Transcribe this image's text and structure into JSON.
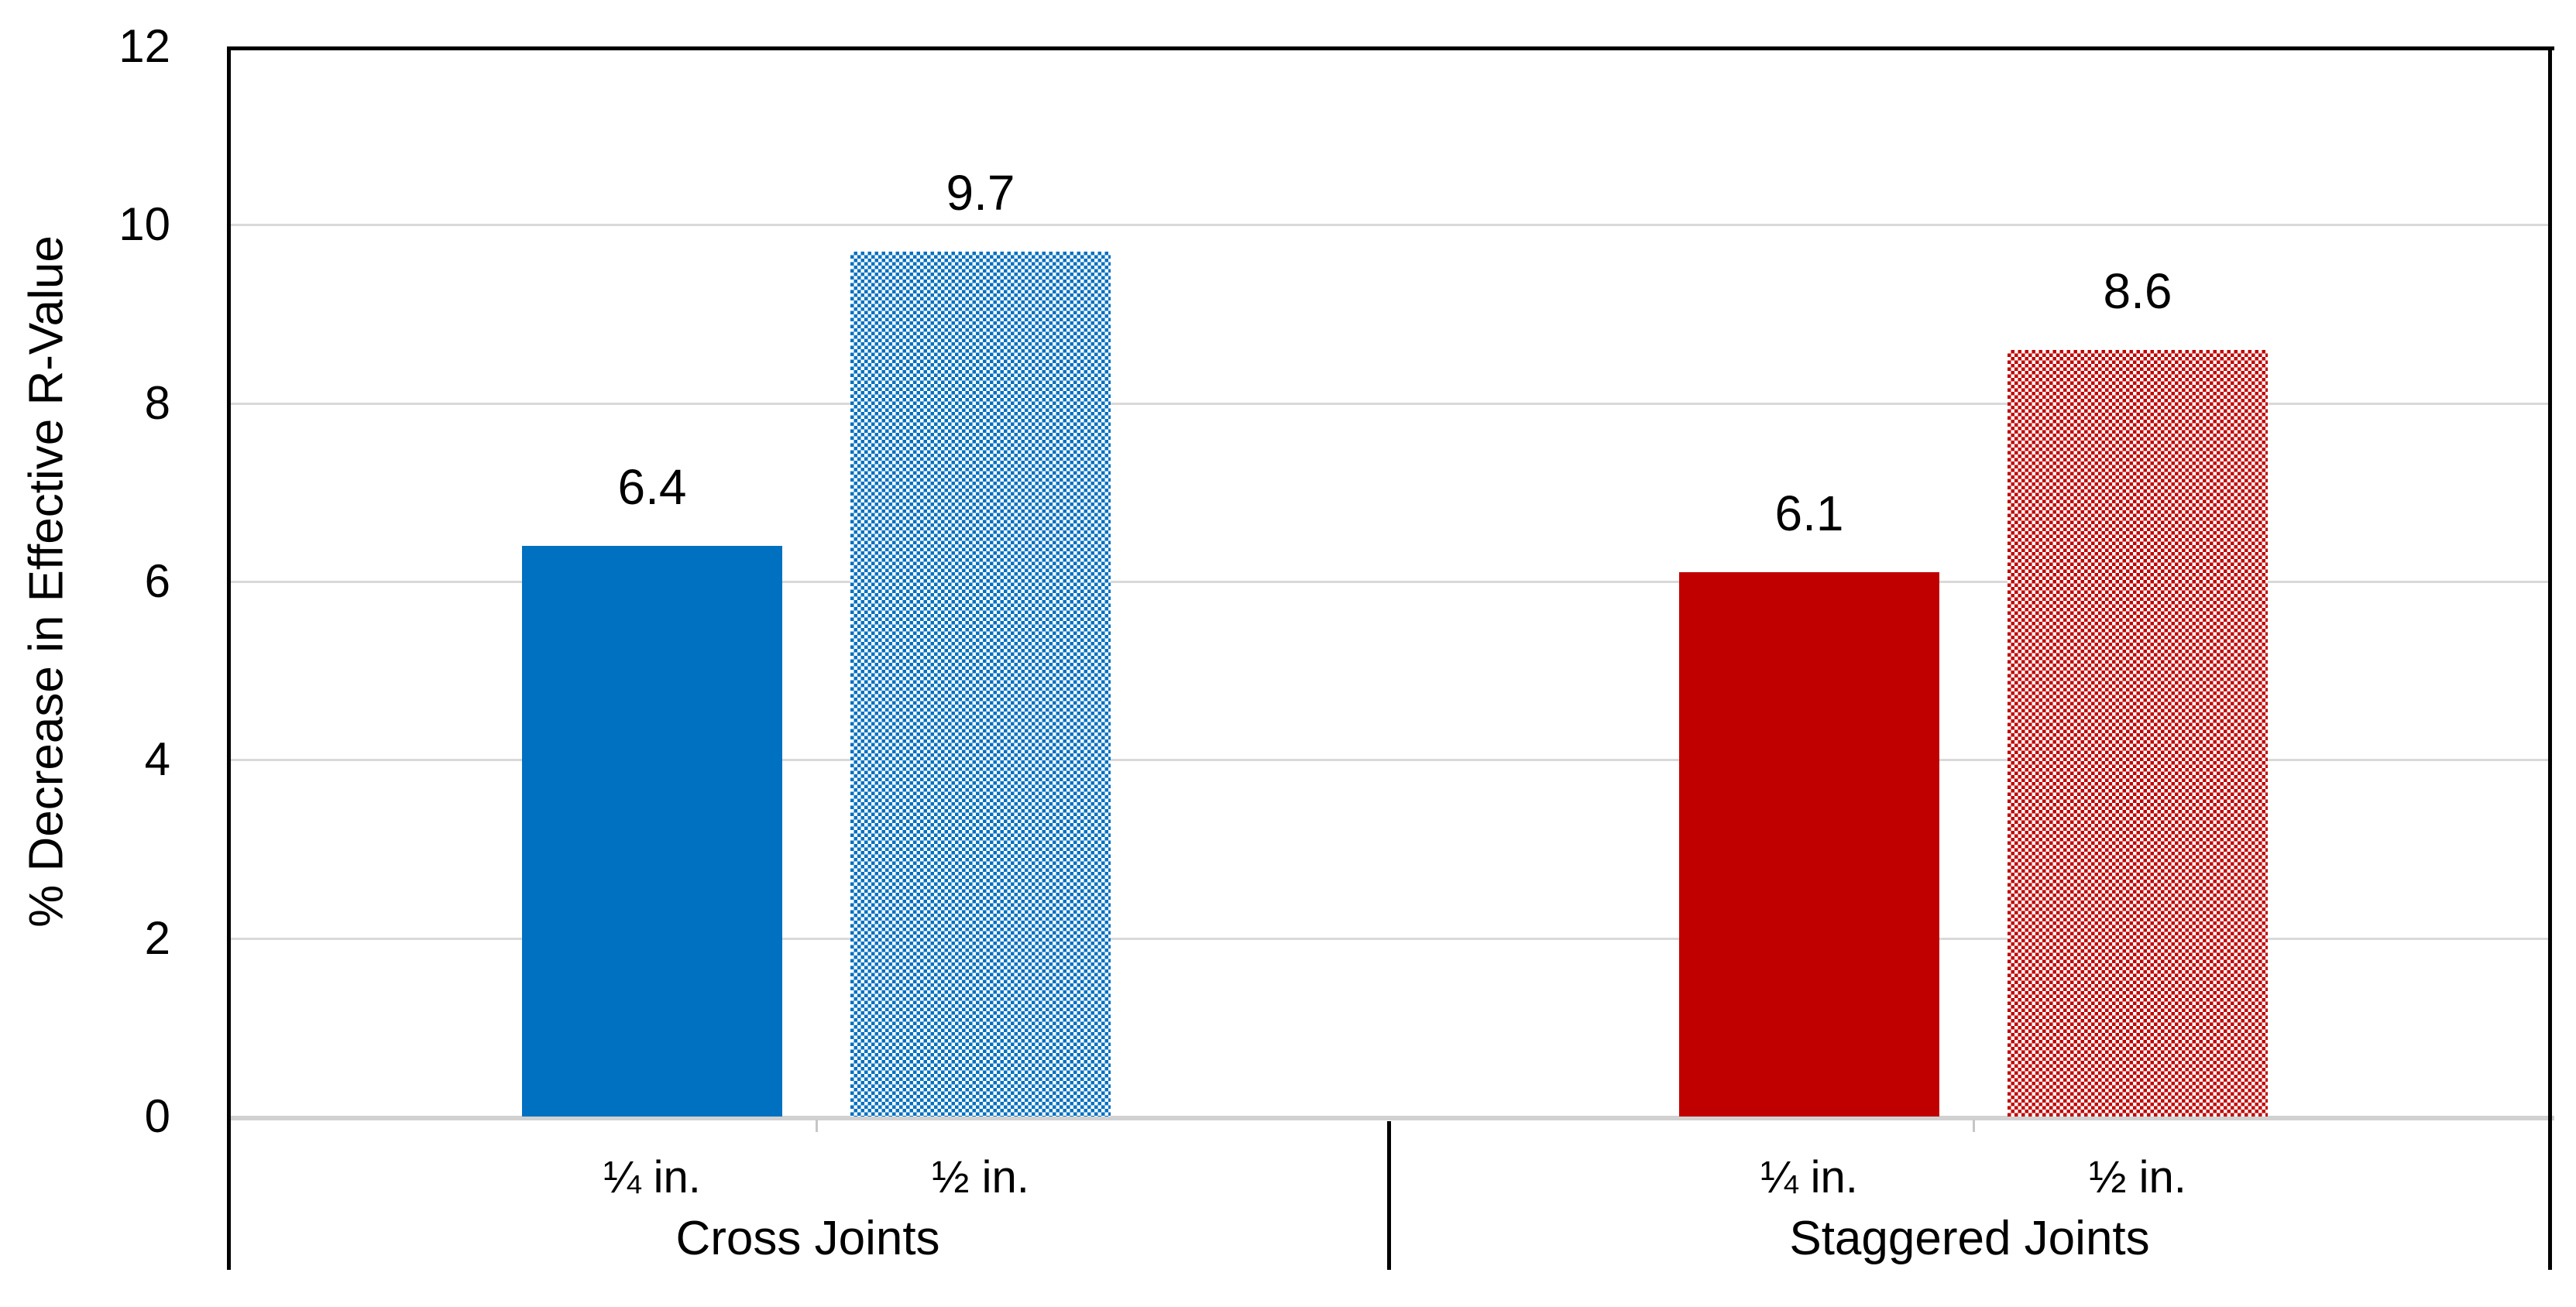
{
  "chart_data": {
    "type": "bar",
    "title": "",
    "xlabel": "",
    "ylabel": "% Decrease in Effective R-Value",
    "ylim": [
      0,
      12
    ],
    "yticks": [
      0,
      2,
      4,
      6,
      8,
      10,
      12
    ],
    "grid": true,
    "legend": "none",
    "categories": [
      "Cross Joints",
      "Staggered Joints"
    ],
    "subcategories": [
      "¼ in.",
      "½ in."
    ],
    "groups": [
      {
        "label": "Cross Joints",
        "color": "#0070C0",
        "bars": [
          {
            "label": "¼ in.",
            "value": 6.4,
            "value_label": "6.4",
            "fill": "solid"
          },
          {
            "label": "½ in.",
            "value": 9.7,
            "value_label": "9.7",
            "fill": "checkerboard"
          }
        ]
      },
      {
        "label": "Staggered Joints",
        "color": "#C00000",
        "bars": [
          {
            "label": "¼ in.",
            "value": 6.1,
            "value_label": "6.1",
            "fill": "solid"
          },
          {
            "label": "½ in.",
            "value": 8.6,
            "value_label": "8.6",
            "fill": "checkerboard"
          }
        ]
      }
    ]
  },
  "colors": {
    "blue_series": "#0070C0",
    "red_series": "#C00000",
    "gridline": "#D9D9D9",
    "axis_line": "#D1D1D1",
    "frame": "#000000",
    "text": "#000000",
    "background": "#FFFFFF"
  }
}
